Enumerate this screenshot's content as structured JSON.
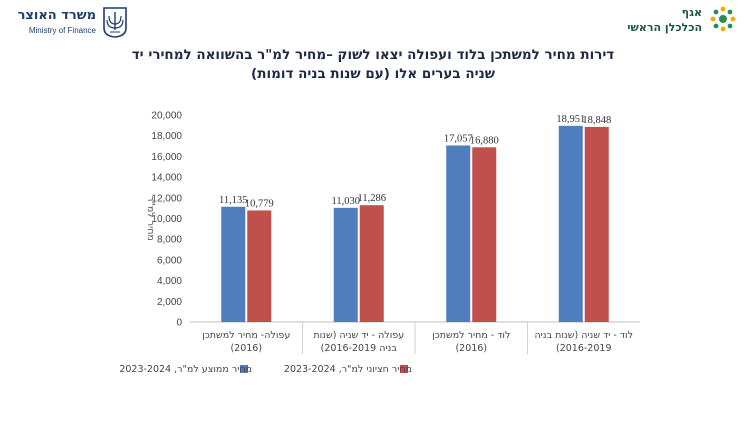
{
  "header": {
    "ministry_he": "משרד האוצר",
    "ministry_en": "Ministry of Finance",
    "agaf": "אגף",
    "chief_economist": "הכלכלן הראשי"
  },
  "colors": {
    "series_avg": "#4f7dbd",
    "series_median": "#c0504d",
    "title": "#1f2a44",
    "ministry_blue": "#1d3d6e",
    "economist_green": "#1a5a3a"
  },
  "chart_data": {
    "type": "bar",
    "title_line1": "דירות מחיר למשתכן בלוד ועפולה יצאו לשוק –מחיר למ\"ר בהשוואה למחירי יד",
    "title_line2": "שניה בערים אלו (עם שנות בניה דומות)",
    "ylabel": "מחיר למ\"ר",
    "xlabel": "",
    "ylim": [
      0,
      20000
    ],
    "yticks": [
      "0",
      "2,000",
      "4,000",
      "6,000",
      "8,000",
      "10,000",
      "12,000",
      "14,000",
      "16,000",
      "18,000",
      "20,000"
    ],
    "categories": [
      [
        "עפולה- מחיר למשתכן",
        "(2016)"
      ],
      [
        "עפולה - יד שניה (שנות",
        "בניה 2016-2019)"
      ],
      [
        "לוד - מחיר למשתכן",
        "(2016)"
      ],
      [
        "לוד - יד שניה (שנות בניה",
        "2016-2019)"
      ]
    ],
    "series": [
      {
        "name": "מחיר ממוצע למ\"ר, 2023-2024",
        "values": [
          11135,
          11030,
          17057,
          18951
        ],
        "labels": [
          "11,135",
          "11,030",
          "17,057",
          "18,951"
        ]
      },
      {
        "name": "מחיר חציוני למ\"ר, 2023-2024",
        "values": [
          10779,
          11286,
          16880,
          18848
        ],
        "labels": [
          "10,779",
          "11,286",
          "16,880",
          "18,848"
        ]
      }
    ],
    "grid": false,
    "legend": "bottom"
  }
}
